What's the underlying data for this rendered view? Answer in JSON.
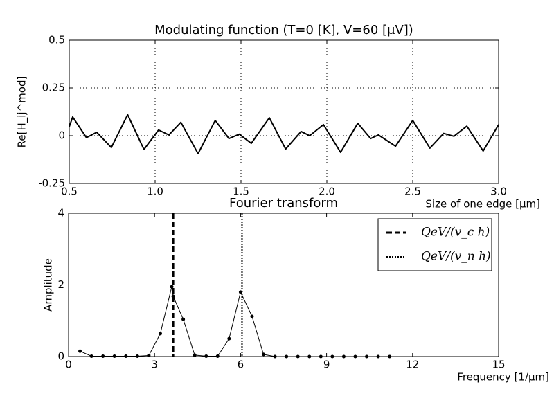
{
  "chart_data": [
    {
      "type": "line",
      "title": "Modulating function (T=0 [K], V=60 [μV])",
      "x_label": "Size of one edge [μm]",
      "y_label": "Re[H_ij^mod]",
      "x": [
        0.5,
        0.52,
        0.6,
        0.66,
        0.745,
        0.84,
        0.935,
        1.02,
        1.08,
        1.15,
        1.25,
        1.35,
        1.43,
        1.49,
        1.56,
        1.665,
        1.76,
        1.85,
        1.9,
        1.98,
        2.08,
        2.18,
        2.255,
        2.3,
        2.4,
        2.5,
        2.6,
        2.68,
        2.74,
        2.815,
        2.91,
        3.0
      ],
      "series": [
        {
          "color": "#000000",
          "values": [
            0.047,
            0.098,
            -0.01,
            0.018,
            -0.062,
            0.11,
            -0.072,
            0.03,
            0.004,
            0.07,
            -0.094,
            0.08,
            -0.015,
            0.008,
            -0.04,
            0.094,
            -0.07,
            0.022,
            0.0,
            0.058,
            -0.087,
            0.065,
            -0.015,
            0.004,
            -0.055,
            0.08,
            -0.065,
            0.012,
            -0.003,
            0.05,
            -0.08,
            0.058
          ]
        }
      ],
      "xlim": [
        0.5,
        3.0
      ],
      "xticks": [
        0.5,
        {
          "value": 1,
          "label": "1.0"
        },
        1.5,
        {
          "value": 2,
          "label": "2.0"
        },
        2.5,
        {
          "value": 3,
          "label": "3.0"
        }
      ],
      "ylim": [
        -0.25,
        0.5
      ],
      "yticks": [
        -0.25,
        0,
        0.25,
        0.5
      ],
      "grid": true
    },
    {
      "type": "line",
      "title": "Fourier transform",
      "x_label": "Frequency [1/μm]",
      "y_label": "Amplitude",
      "x": [
        0.4,
        0.8,
        1.2,
        1.6,
        2.0,
        2.4,
        2.8,
        3.2,
        3.6,
        3.65,
        4.0,
        4.4,
        4.8,
        5.2,
        5.6,
        6.0,
        6.4,
        6.8,
        7.2,
        7.6,
        8.0,
        8.4,
        8.8,
        9.2,
        9.6,
        10.0,
        10.4,
        10.8,
        11.2
      ],
      "series": [
        {
          "color": "#000000",
          "markers": true,
          "values": [
            0.15,
            0.01,
            0.01,
            0.01,
            0.01,
            0.01,
            0.03,
            0.64,
            1.95,
            1.68,
            1.04,
            0.04,
            0.01,
            0.01,
            0.5,
            1.8,
            1.12,
            0.06,
            0,
            0,
            0,
            0,
            0,
            0,
            0,
            0,
            0,
            0,
            0
          ]
        }
      ],
      "vlines": [
        {
          "name": "QeV/(v_c h)",
          "x": 3.65,
          "style": "dashed",
          "color": "#000000"
        },
        {
          "name": "QeV/(v_n h)",
          "x": 6.05,
          "style": "dotted",
          "color": "#000000"
        }
      ],
      "xlim": [
        0,
        15
      ],
      "xticks": [
        0,
        3,
        6,
        9,
        12,
        15
      ],
      "ylim": [
        0,
        4
      ],
      "yticks": [
        0,
        2,
        4
      ],
      "grid": false,
      "legend": "upper right"
    }
  ]
}
